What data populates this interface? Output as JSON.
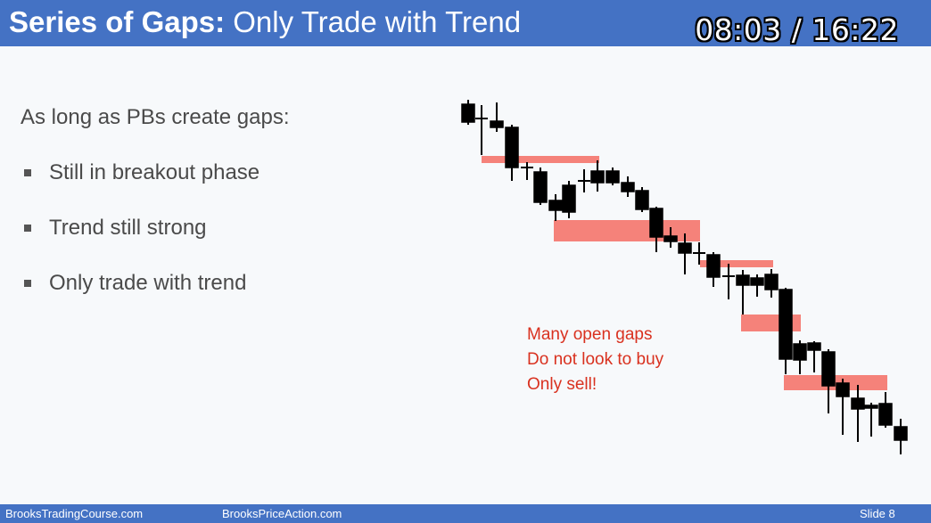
{
  "header": {
    "title_bold": "Series of Gaps:",
    "title_rest": " Only Trade with Trend",
    "timer": "08:03 / 16:22"
  },
  "body": {
    "lead": "As long as PBs create gaps:",
    "bullets": [
      "Still in breakout phase",
      "Trend still strong",
      "Only trade with trend"
    ]
  },
  "annotation": [
    "Many open gaps",
    "Do not look to buy",
    "Only sell!"
  ],
  "colors": {
    "header_bg": "#4472c4",
    "annotation_text": "#d9311f",
    "gap_fill": "#f4645a",
    "bear_bar": "#000000"
  },
  "footer": {
    "left": "BrooksTradingCourse.com",
    "center": "BrooksPriceAction.com",
    "slide": "Slide  8"
  }
}
